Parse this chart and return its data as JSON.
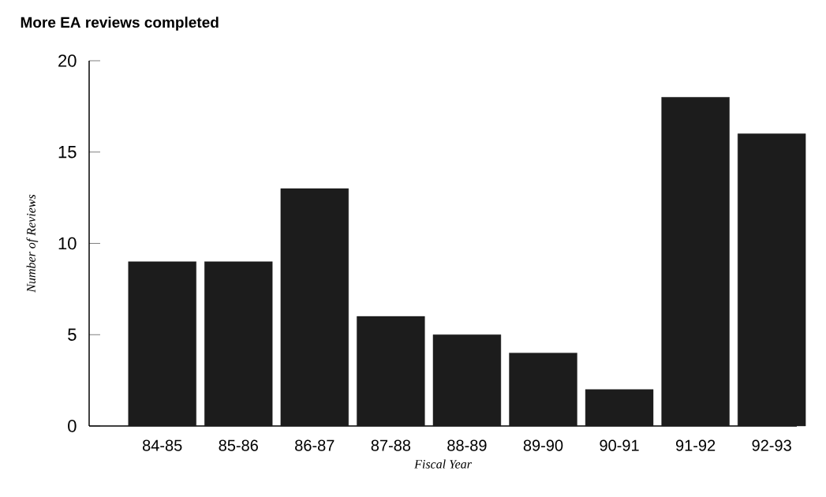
{
  "chart_data": {
    "type": "bar",
    "title": "More EA reviews completed",
    "xlabel": "Fiscal Year",
    "ylabel": "Number of Reviews",
    "categories": [
      "84-85",
      "85-86",
      "86-87",
      "87-88",
      "88-89",
      "89-90",
      "90-91",
      "91-92",
      "92-93"
    ],
    "values": [
      9,
      9,
      13,
      6,
      5,
      4,
      2,
      18,
      16
    ],
    "color": "#1c1c1c",
    "ylim": [
      0,
      20
    ],
    "yticks": [
      0,
      5,
      10,
      15,
      20
    ]
  }
}
